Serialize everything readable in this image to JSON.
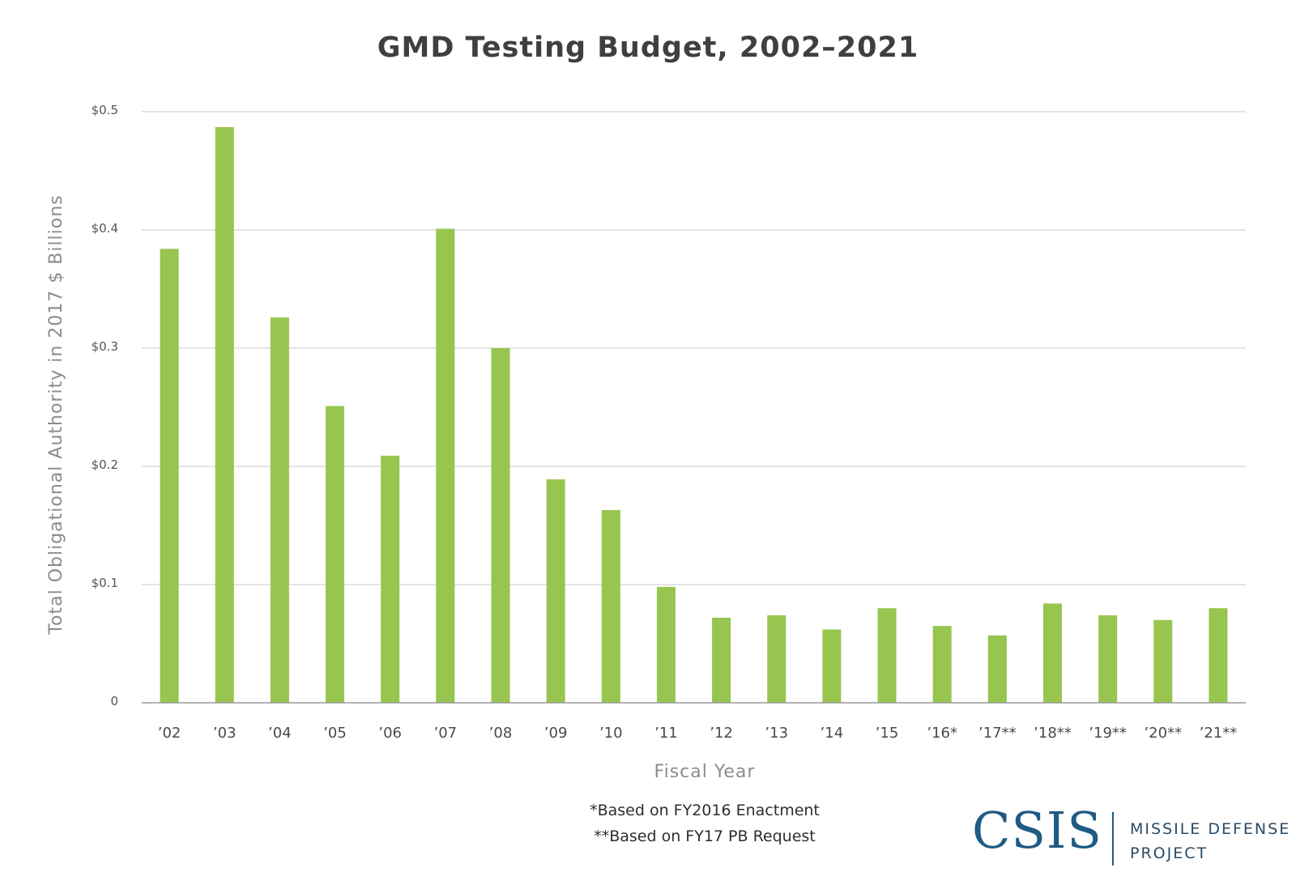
{
  "chart_data": {
    "type": "bar",
    "title": "GMD Testing Budget, 2002–2021",
    "xlabel": "Fiscal Year",
    "ylabel": "Total Obligational Authority in 2017 $ Billions",
    "categories": [
      "’02",
      "’03",
      "’04",
      "’05",
      "’06",
      "’07",
      "’08",
      "’09",
      "’10",
      "’11",
      "’12",
      "’13",
      "’14",
      "’15",
      "’16*",
      "’17**",
      "’18**",
      "’19**",
      "’20**",
      "’21**"
    ],
    "values": [
      0.384,
      0.487,
      0.326,
      0.251,
      0.209,
      0.401,
      0.3,
      0.189,
      0.163,
      0.098,
      0.072,
      0.074,
      0.062,
      0.08,
      0.065,
      0.057,
      0.084,
      0.074,
      0.07,
      0.08
    ],
    "ylim": [
      0,
      0.5
    ],
    "yticks": [
      0,
      0.1,
      0.2,
      0.3,
      0.4,
      0.5
    ],
    "ytick_labels": [
      "0",
      "$0.1",
      "$0.2",
      "$0.3",
      "$0.4",
      "$0.5"
    ],
    "grid": true,
    "bar_color": "#97c54f"
  },
  "footnotes": {
    "line1": "*Based on FY2016 Enactment",
    "line2": "**Based on FY17 PB Request"
  },
  "logo": {
    "org": "CSIS",
    "line1": "MISSILE DEFENSE",
    "line2": "PROJECT"
  },
  "colors": {
    "bar": "#97c54f",
    "title": "#3f3f3f",
    "logo": "#1f5b84"
  }
}
